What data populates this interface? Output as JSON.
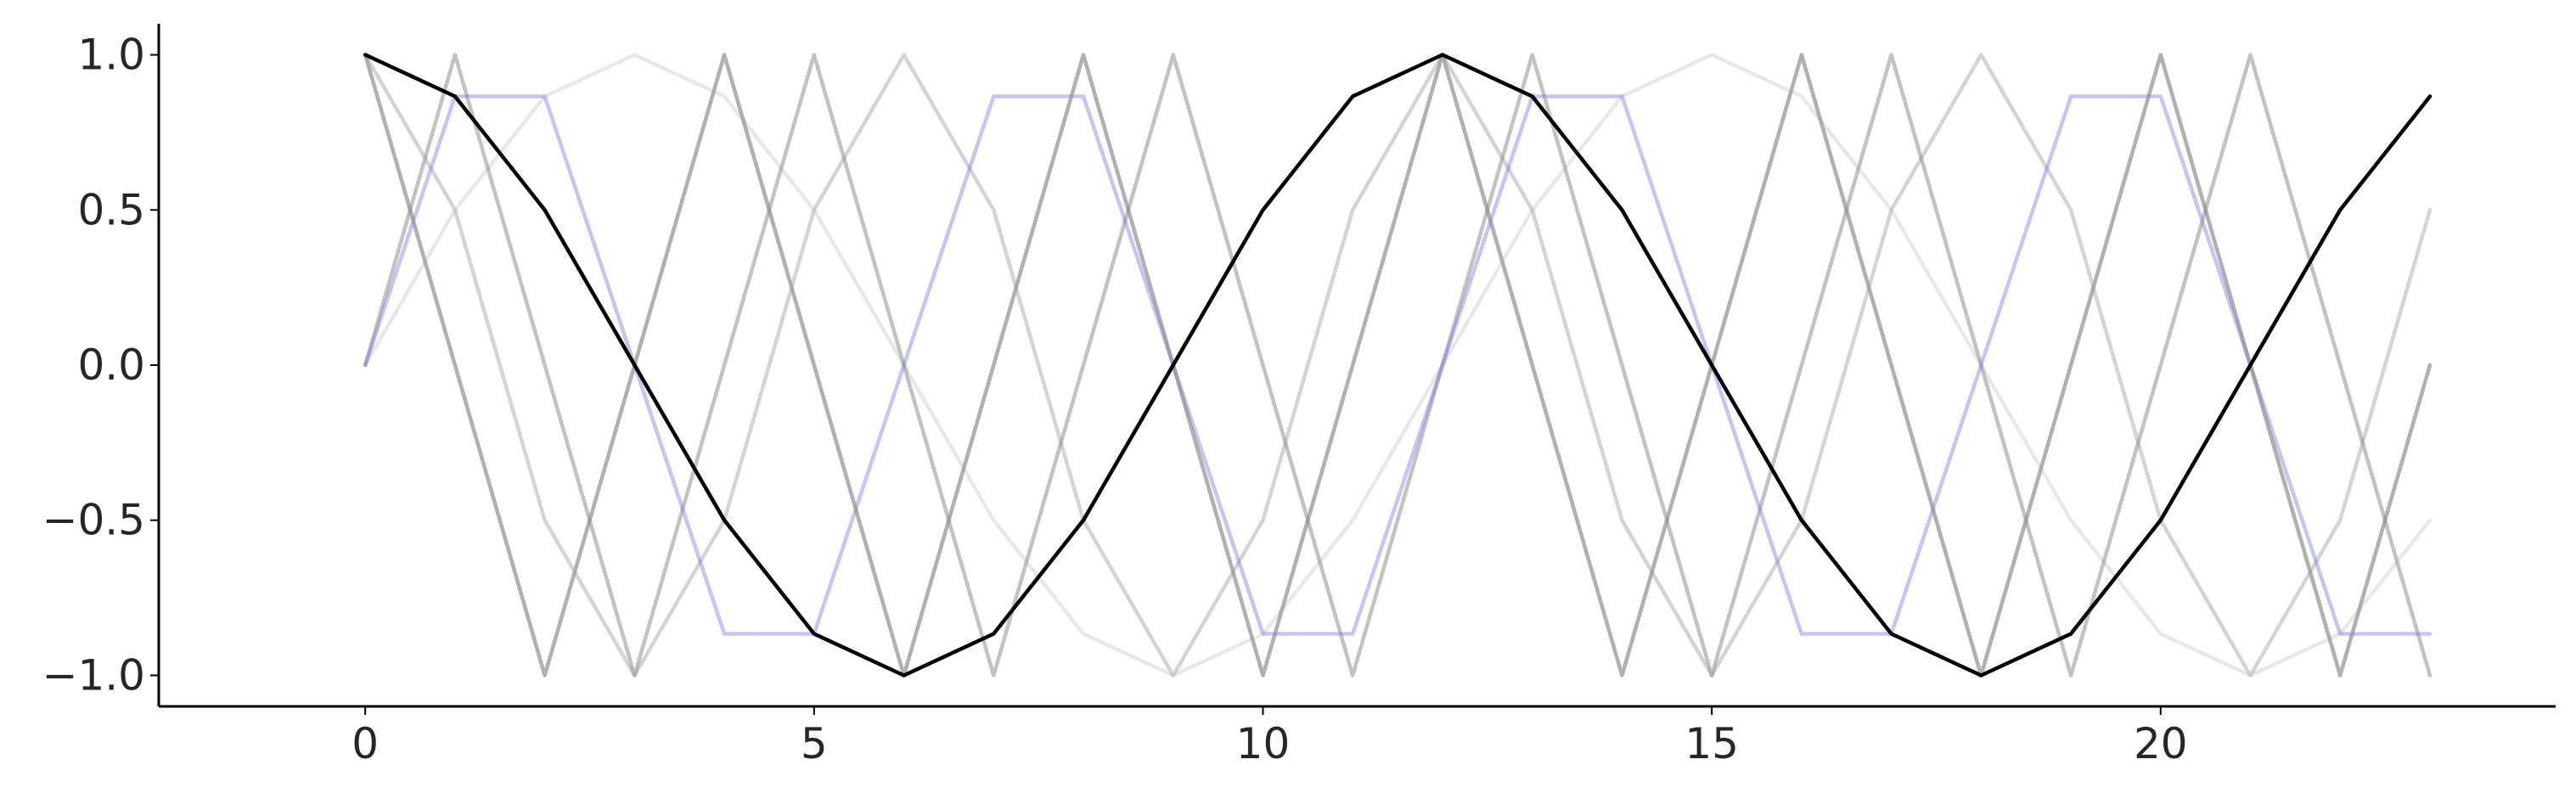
{
  "chart_data": {
    "type": "line",
    "title": "",
    "xlabel": "",
    "ylabel": "",
    "xlim": [
      -2.3,
      24.4
    ],
    "ylim": [
      -1.1,
      1.1
    ],
    "grid": false,
    "legend": "none",
    "x": [
      0,
      1,
      2,
      3,
      4,
      5,
      6,
      7,
      8,
      9,
      10,
      11,
      12,
      13,
      14,
      15,
      16,
      17,
      18,
      19,
      20,
      21,
      22,
      23
    ],
    "x_ticks": [
      0,
      5,
      10,
      15,
      20
    ],
    "x_tick_labels": [
      "0",
      "5",
      "10",
      "15",
      "20"
    ],
    "y_ticks": [
      1.0,
      0.5,
      0.0,
      -0.5,
      -1.0
    ],
    "y_tick_labels": [
      "1.0",
      "0.5",
      "0.0",
      "−0.5",
      "−1.0"
    ],
    "series": [
      {
        "color": "#cccccc",
        "opacity": 0.45,
        "values": [
          0,
          0.5,
          0.866,
          1,
          0.866,
          0.5,
          0,
          -0.5,
          -0.866,
          -1,
          -0.866,
          -0.5,
          0,
          0.5,
          0.866,
          1,
          0.866,
          0.5,
          0,
          -0.5,
          -0.866,
          -1,
          -0.866,
          -0.5
        ]
      },
      {
        "color": "#b0b0b0",
        "opacity": 0.55,
        "values": [
          1,
          0.5,
          -0.5,
          -1,
          -0.5,
          0.5,
          1,
          0.5,
          -0.5,
          -1,
          -0.5,
          0.5,
          1,
          0.5,
          -0.5,
          -1,
          -0.5,
          0.5,
          1,
          0.5,
          -0.5,
          -1,
          -0.5,
          0.5
        ]
      },
      {
        "color": "#bdbdbd",
        "opacity": 0.5,
        "values": [
          1,
          0,
          -1,
          0,
          1,
          0,
          -1,
          0,
          1,
          0,
          -1,
          0,
          1,
          0,
          -1,
          0,
          1,
          0,
          -1,
          0,
          1,
          0,
          -1,
          0
        ]
      },
      {
        "color": "#8f8f8f",
        "opacity": 0.55,
        "values": [
          0,
          1,
          0,
          -1,
          0,
          1,
          0,
          -1,
          0,
          1,
          0,
          -1,
          0,
          1,
          0,
          -1,
          0,
          1,
          0,
          -1,
          0,
          1,
          0,
          -1
        ]
      },
      {
        "color": "#7f7fe5",
        "opacity": 0.45,
        "values": [
          0,
          0.866,
          0.866,
          0,
          -0.866,
          -0.866,
          0,
          0.866,
          0.866,
          0,
          -0.866,
          -0.866,
          0,
          0.866,
          0.866,
          0,
          -0.866,
          -0.866,
          0,
          0.866,
          0.866,
          0,
          -0.866,
          -0.866
        ]
      },
      {
        "color": "#8a8a8a",
        "opacity": 0.55,
        "values": [
          1,
          0,
          -1,
          0,
          1,
          0,
          -1,
          0,
          1,
          0,
          -1,
          0,
          1,
          0,
          -1,
          0,
          1,
          0,
          -1,
          0,
          1,
          0,
          -1,
          0
        ]
      },
      {
        "color": "#000000",
        "opacity": 1.0,
        "values": [
          1,
          0.866,
          0.5,
          0,
          -0.5,
          -0.866,
          -1,
          -0.866,
          -0.5,
          0,
          0.5,
          0.866,
          1,
          0.866,
          0.5,
          0,
          -0.5,
          -0.866,
          -1,
          -0.866,
          -0.5,
          0,
          0.5,
          0.866
        ]
      }
    ]
  }
}
